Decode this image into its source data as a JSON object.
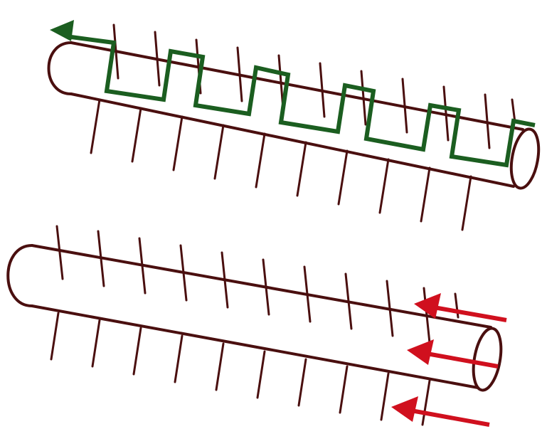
{
  "diagram": {
    "colors": {
      "background": "#ffffff",
      "tube": "#4a0f0f",
      "trace": "#1b5e20",
      "arrow": "#d0101e"
    },
    "tubes": [
      {
        "id": "upper",
        "end": "open-right",
        "hairs_top": 11,
        "hairs_bottom": 10
      },
      {
        "id": "lower",
        "end": "open-right",
        "hairs_top": 11,
        "hairs_bottom": 10
      }
    ],
    "trace": {
      "description_color": "green",
      "segments": 6,
      "direction": "leftward",
      "arrow_icon": "arrowhead-left-icon"
    },
    "arrows": {
      "count": 3,
      "direction": "leftward",
      "icon": "arrowhead-left-icon"
    }
  }
}
